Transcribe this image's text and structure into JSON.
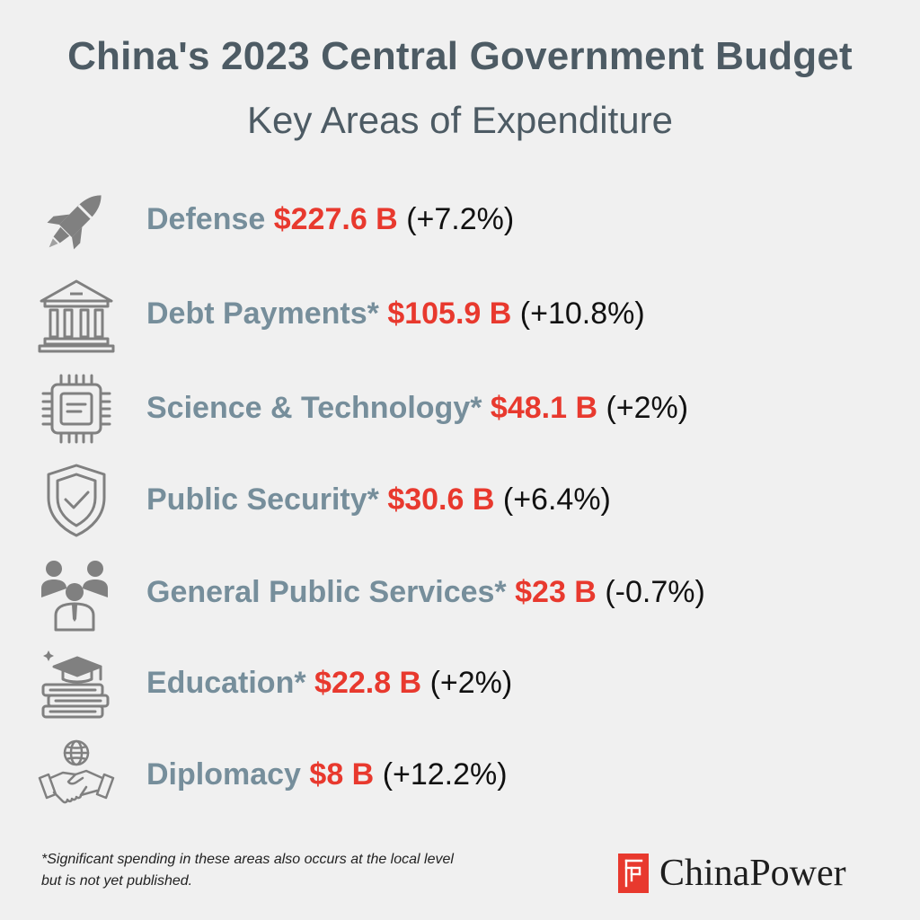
{
  "header": {
    "title": "China's 2023 Central Government Budget",
    "subtitle": "Key Areas of Expenditure"
  },
  "items": [
    {
      "label": "Defense",
      "amount": "$227.6 B",
      "change": "(+7.2%)",
      "icon": "rocket-icon"
    },
    {
      "label": "Debt Payments*",
      "amount": "$105.9 B",
      "change": "(+10.8%)",
      "icon": "bank-icon"
    },
    {
      "label": "Science & Technology*",
      "amount": "$48.1 B",
      "change": "(+2%)",
      "icon": "chip-icon"
    },
    {
      "label": "Public Security*",
      "amount": "$30.6 B",
      "change": "(+6.4%)",
      "icon": "shield-check-icon"
    },
    {
      "label": "General Public Services*",
      "amount": "$23 B",
      "change": "(-0.7%)",
      "icon": "people-group-icon"
    },
    {
      "label": "Education*",
      "amount": "$22.8 B",
      "change": "(+2%)",
      "icon": "graduation-books-icon"
    },
    {
      "label": "Diplomacy",
      "amount": "$8 B",
      "change": "(+12.2%)",
      "icon": "globe-handshake-icon"
    }
  ],
  "footnote": {
    "line1": "*Significant spending in these areas also occurs at the local level",
    "line2": "but is not yet published."
  },
  "brand": {
    "name": "ChinaPower",
    "accent_color": "#e8392e"
  },
  "colors": {
    "background": "#f0f0f0",
    "title": "#4d5b64",
    "label": "#768e9b",
    "amount": "#e8392e",
    "icon": "#808080"
  }
}
